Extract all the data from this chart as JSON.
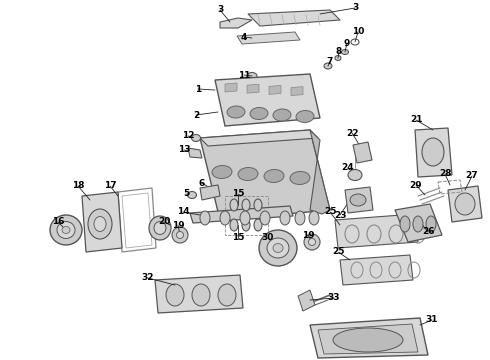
{
  "bg_color": "#ffffff",
  "figsize": [
    4.9,
    3.6
  ],
  "dpi": 100,
  "ec": "#555555",
  "fc_light": "#d8d8d8",
  "fc_mid": "#c8c8c8",
  "fc_dark": "#b8b8b8"
}
